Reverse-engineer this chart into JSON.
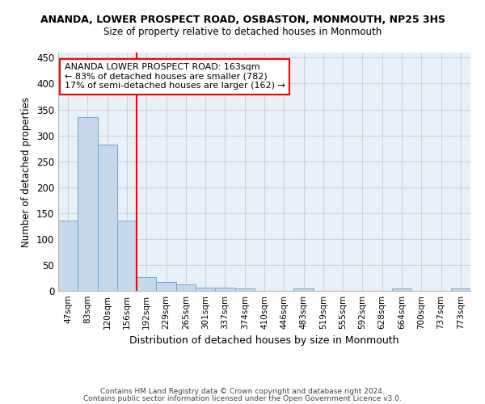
{
  "title1": "ANANDA, LOWER PROSPECT ROAD, OSBASTON, MONMOUTH, NP25 3HS",
  "title2": "Size of property relative to detached houses in Monmouth",
  "xlabel": "Distribution of detached houses by size in Monmouth",
  "ylabel": "Number of detached properties",
  "bar_labels": [
    "47sqm",
    "83sqm",
    "120sqm",
    "156sqm",
    "192sqm",
    "229sqm",
    "265sqm",
    "301sqm",
    "337sqm",
    "374sqm",
    "410sqm",
    "446sqm",
    "483sqm",
    "519sqm",
    "555sqm",
    "592sqm",
    "628sqm",
    "664sqm",
    "700sqm",
    "737sqm",
    "773sqm"
  ],
  "bar_heights": [
    135,
    335,
    282,
    135,
    27,
    17,
    13,
    7,
    6,
    5,
    0,
    0,
    5,
    0,
    0,
    0,
    0,
    5,
    0,
    0,
    5
  ],
  "bar_color": "#c8d8eb",
  "bar_edge_color": "#6aaad4",
  "grid_color": "#c8d4e0",
  "bg_color": "#e8f0f8",
  "red_line_x": 3.5,
  "annotation_text": "ANANDA LOWER PROSPECT ROAD: 163sqm\n← 83% of detached houses are smaller (782)\n17% of semi-detached houses are larger (162) →",
  "footer1": "Contains HM Land Registry data © Crown copyright and database right 2024.",
  "footer2": "Contains public sector information licensed under the Open Government Licence v3.0.",
  "ylim": [
    0,
    460
  ],
  "yticks": [
    0,
    50,
    100,
    150,
    200,
    250,
    300,
    350,
    400,
    450
  ]
}
